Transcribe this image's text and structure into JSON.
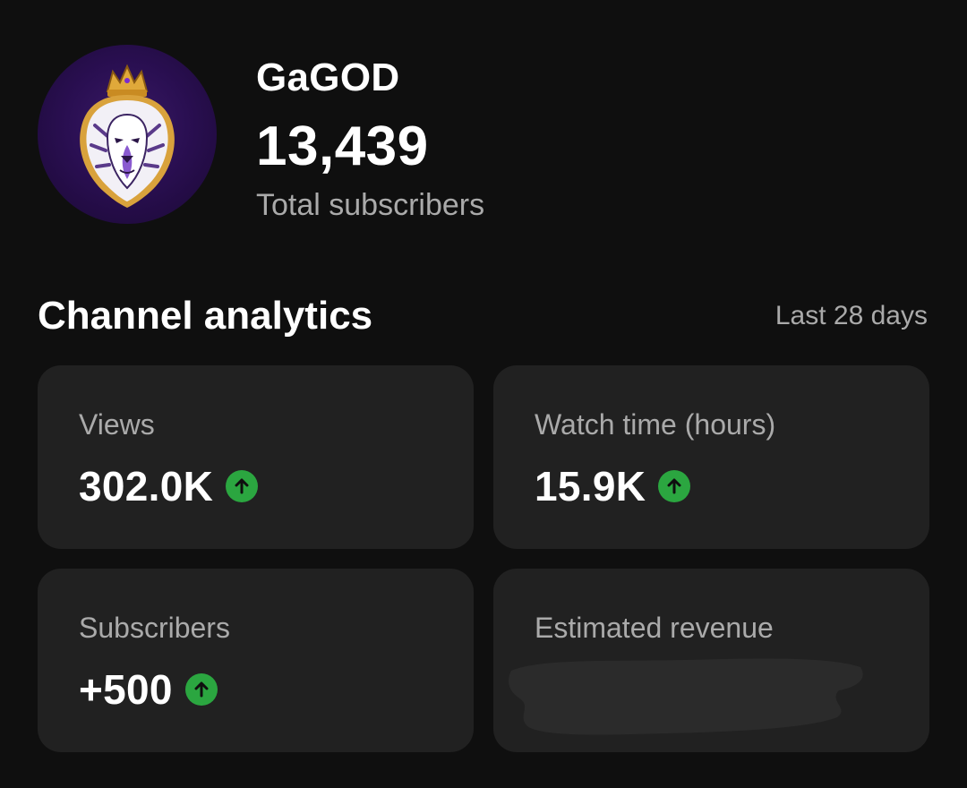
{
  "channel": {
    "name": "GaGOD",
    "subscriber_count": "13,439",
    "subscriber_label": "Total subscribers",
    "avatar_icon": "lion-crown-icon"
  },
  "analytics": {
    "title": "Channel analytics",
    "period": "Last 28 days",
    "cards": [
      {
        "label": "Views",
        "value": "302.0K",
        "trend": "up"
      },
      {
        "label": "Watch time (hours)",
        "value": "15.9K",
        "trend": "up"
      },
      {
        "label": "Subscribers",
        "value": "+500",
        "trend": "up"
      },
      {
        "label": "Estimated revenue",
        "value": null,
        "redacted": true
      }
    ]
  },
  "colors": {
    "background": "#0f0f0f",
    "card": "#212121",
    "trend_up": "#2ba640",
    "secondary_text": "#aaaaaa"
  }
}
